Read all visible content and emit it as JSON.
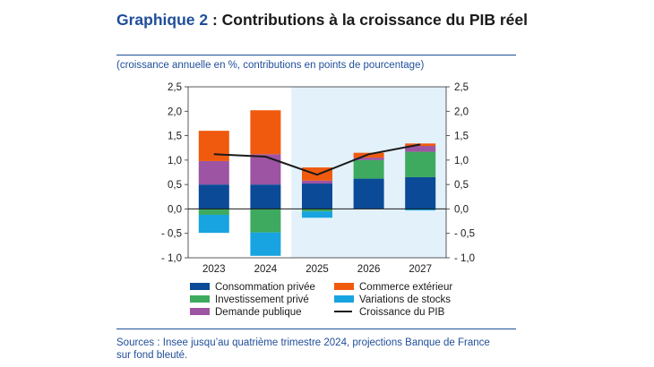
{
  "header": {
    "title_lead": "Graphique 2",
    "title_rest": " : Contributions à la croissance du PIB réel",
    "subtitle": "(croissance annuelle en %, contributions en points de pourcentage)"
  },
  "footer": {
    "sources_line1": "Sources : Insee jusqu’au quatrième trimestre 2024, projections Banque de France",
    "sources_line2": "sur fond bleuté."
  },
  "chart_data": {
    "type": "bar",
    "stacked": true,
    "categories": [
      "2023",
      "2024",
      "2025",
      "2026",
      "2027"
    ],
    "projection_start_index": 2,
    "ylim": [
      -1.0,
      2.5
    ],
    "yticks": [
      -1.0,
      -0.5,
      0.0,
      0.5,
      1.0,
      1.5,
      2.0,
      2.5
    ],
    "ytick_labels": [
      "- 1,0",
      "- 0,5",
      "0,0",
      "0,5",
      "1,0",
      "1,5",
      "2,0",
      "2,5"
    ],
    "series": [
      {
        "name": "Consommation privée",
        "color": "#0b4a97",
        "values": [
          0.5,
          0.5,
          0.52,
          0.62,
          0.65
        ]
      },
      {
        "name": "Investissement privé",
        "color": "#3daa5f",
        "values": [
          -0.12,
          -0.48,
          -0.05,
          0.38,
          0.52
        ]
      },
      {
        "name": "Demande publique",
        "color": "#9c54a3",
        "values": [
          0.48,
          0.62,
          0.06,
          0.05,
          0.12
        ]
      },
      {
        "name": "Commerce extérieur",
        "color": "#f05a0f",
        "values": [
          0.62,
          0.9,
          0.27,
          0.1,
          0.05
        ]
      },
      {
        "name": "Variations de stocks",
        "color": "#18a4e0",
        "values": [
          -0.37,
          -0.48,
          -0.13,
          0.0,
          -0.03
        ]
      }
    ],
    "line": {
      "name": "Croissance du PIB",
      "color": "#1a1a1a",
      "values": [
        1.12,
        1.07,
        0.7,
        1.12,
        1.32
      ]
    },
    "legend": [
      {
        "name": "Consommation privée",
        "color": "#0b4a97",
        "kind": "box"
      },
      {
        "name": "Commerce extérieur",
        "color": "#f05a0f",
        "kind": "box"
      },
      {
        "name": "Investissement privé",
        "color": "#3daa5f",
        "kind": "box"
      },
      {
        "name": "Variations de stocks",
        "color": "#18a4e0",
        "kind": "box"
      },
      {
        "name": "Demande publique",
        "color": "#9c54a3",
        "kind": "box"
      },
      {
        "name": "Croissance du PIB",
        "color": "#1a1a1a",
        "kind": "line"
      }
    ],
    "projection_shade_color": "#e3f1fb"
  }
}
